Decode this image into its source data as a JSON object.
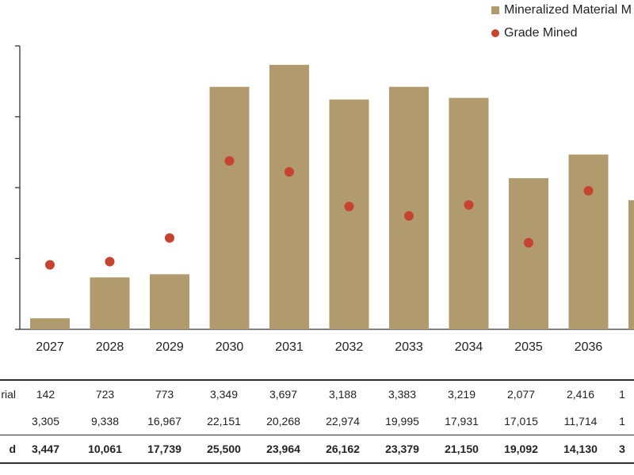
{
  "colors": {
    "bar": "#b09a6e",
    "dot": "#c8432f",
    "axis": "#333333"
  },
  "legend": {
    "bar_label": "Mineralized Material M",
    "dot_label": "Grade Mined"
  },
  "chart_data": {
    "type": "bar",
    "categories": [
      "2027",
      "2028",
      "2029",
      "2030",
      "2031",
      "2032",
      "2033",
      "2034",
      "2035",
      "2036"
    ],
    "series": [
      {
        "name": "Mineralized Material M",
        "type": "bar",
        "values": [
          0.35,
          1.65,
          1.75,
          7.7,
          8.4,
          7.3,
          7.7,
          7.35,
          4.8,
          5.55
        ]
      },
      {
        "name": "Grade Mined",
        "type": "scatter",
        "values": [
          2.05,
          2.15,
          2.9,
          5.35,
          5.0,
          3.9,
          3.6,
          3.95,
          2.75,
          4.4
        ]
      }
    ],
    "ylim": [
      0,
      9
    ],
    "grid": false
  },
  "table": {
    "rows": [
      {
        "label": "rial",
        "values": [
          "142",
          "723",
          "773",
          "3,349",
          "3,697",
          "3,188",
          "3,383",
          "3,219",
          "2,077",
          "2,416"
        ],
        "extra": "1"
      },
      {
        "label": "",
        "values": [
          "3,305",
          "9,338",
          "16,967",
          "22,151",
          "20,268",
          "22,974",
          "19,995",
          "17,931",
          "17,015",
          "11,714"
        ],
        "extra": "1"
      },
      {
        "label": "d",
        "values": [
          "3,447",
          "10,061",
          "17,739",
          "25,500",
          "23,964",
          "26,162",
          "23,379",
          "21,150",
          "19,092",
          "14,130"
        ],
        "extra": "3"
      }
    ]
  }
}
